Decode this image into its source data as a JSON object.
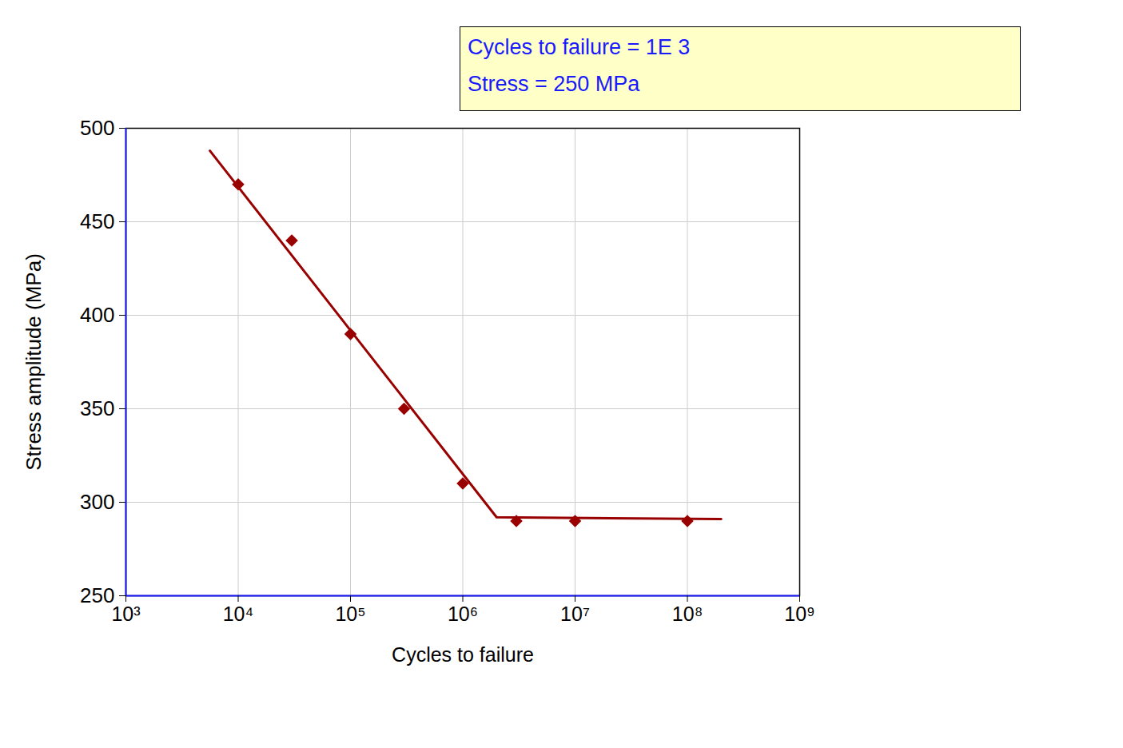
{
  "chart_data": {
    "type": "line",
    "x_label": "Cycles to failure",
    "y_label": "Stress amplitude (MPa)",
    "annotations": [
      "Cycles to failure = 1E 3",
      "Stress = 250 MPa"
    ],
    "log": "x",
    "grid": true,
    "xlim": [
      1000,
      1000000000
    ],
    "xticks": [
      {
        "value": 1000,
        "label": "10³"
      },
      {
        "value": 10000,
        "label": "10⁴"
      },
      {
        "value": 100000,
        "label": "10⁵"
      },
      {
        "value": 1000000,
        "label": "10⁶"
      },
      {
        "value": 10000000,
        "label": "10⁷"
      },
      {
        "value": 100000000,
        "label": "10⁸"
      },
      {
        "value": 1000000000,
        "label": "10⁹"
      }
    ],
    "ylim": [
      250,
      500
    ],
    "yticks": [
      250,
      300,
      350,
      400,
      450,
      500
    ],
    "series": [
      {
        "type": "scatter",
        "marker": "diamond",
        "color": "#990000",
        "x": [
          10000,
          30000,
          100000,
          300000,
          1000000,
          3000000,
          10000000,
          100000000
        ],
        "values": [
          470,
          440,
          390,
          350,
          310,
          290,
          290,
          290
        ]
      },
      {
        "type": "line",
        "line_style": "solid",
        "color": "#990000",
        "x": [
          5600,
          2000000,
          200000000
        ],
        "values": [
          488,
          292,
          291
        ]
      }
    ]
  }
}
